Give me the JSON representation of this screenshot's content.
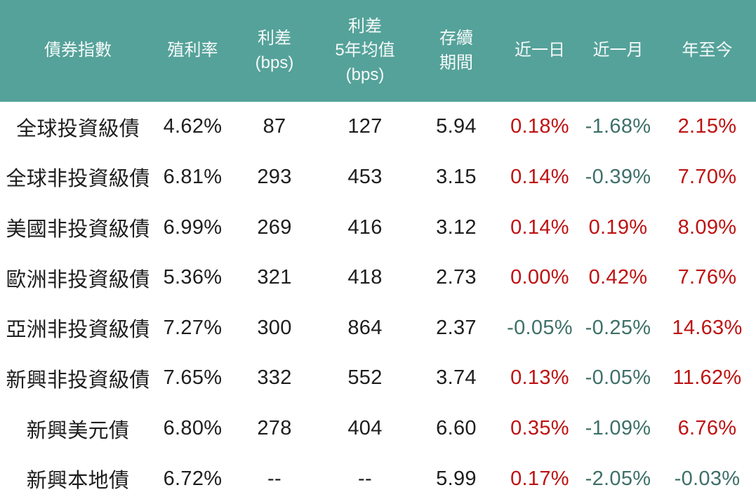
{
  "style": {
    "header_bg": "#55A29A",
    "header_text": "#F5FAF9",
    "body_text": "#1E1E1E",
    "positive_color": "#BE1212",
    "negative_color": "#3E7068"
  },
  "chart_data": {
    "type": "table",
    "columns": [
      "債券指數",
      "殖利率",
      "利差\n(bps)",
      "利差\n5年均值\n(bps)",
      "存續\n期間",
      "近一日",
      "近一月",
      "年至今"
    ],
    "change_column_indices": [
      5,
      6,
      7
    ],
    "rows": [
      [
        "全球投資級債",
        "4.62%",
        "87",
        "127",
        "5.94",
        "0.18%",
        "-1.68%",
        "2.15%"
      ],
      [
        "全球非投資級債",
        "6.81%",
        "293",
        "453",
        "3.15",
        "0.14%",
        "-0.39%",
        "7.70%"
      ],
      [
        "美國非投資級債",
        "6.99%",
        "269",
        "416",
        "3.12",
        "0.14%",
        "0.19%",
        "8.09%"
      ],
      [
        "歐洲非投資級債",
        "5.36%",
        "321",
        "418",
        "2.73",
        "0.00%",
        "0.42%",
        "7.76%"
      ],
      [
        "亞洲非投資級債",
        "7.27%",
        "300",
        "864",
        "2.37",
        "-0.05%",
        "-0.25%",
        "14.63%"
      ],
      [
        "新興非投資級債",
        "7.65%",
        "332",
        "552",
        "3.74",
        "0.13%",
        "-0.05%",
        "11.62%"
      ],
      [
        "新興美元債",
        "6.80%",
        "278",
        "404",
        "6.60",
        "0.35%",
        "-1.09%",
        "6.76%"
      ],
      [
        "新興本地債",
        "6.72%",
        "--",
        "--",
        "5.99",
        "0.17%",
        "-2.05%",
        "-0.03%"
      ]
    ]
  }
}
